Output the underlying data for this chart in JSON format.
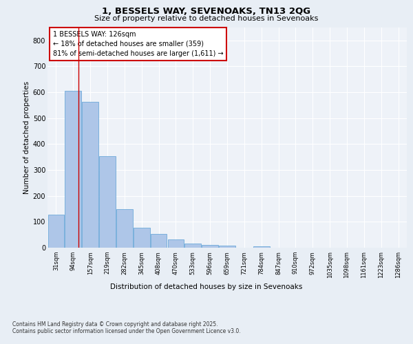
{
  "title_line1": "1, BESSELS WAY, SEVENOAKS, TN13 2QG",
  "title_line2": "Size of property relative to detached houses in Sevenoaks",
  "xlabel": "Distribution of detached houses by size in Sevenoaks",
  "ylabel": "Number of detached properties",
  "bins": [
    "31sqm",
    "94sqm",
    "157sqm",
    "219sqm",
    "282sqm",
    "345sqm",
    "408sqm",
    "470sqm",
    "533sqm",
    "596sqm",
    "659sqm",
    "721sqm",
    "784sqm",
    "847sqm",
    "910sqm",
    "972sqm",
    "1035sqm",
    "1098sqm",
    "1161sqm",
    "1223sqm",
    "1286sqm"
  ],
  "values": [
    128,
    606,
    563,
    352,
    150,
    78,
    53,
    32,
    15,
    11,
    8,
    0,
    4,
    0,
    0,
    0,
    0,
    0,
    0,
    0,
    0
  ],
  "bar_color": "#aec6e8",
  "bar_edge_color": "#5a9fd4",
  "vline_x": 1.32,
  "vline_color": "#cc0000",
  "annotation_text": "1 BESSELS WAY: 126sqm\n← 18% of detached houses are smaller (359)\n81% of semi-detached houses are larger (1,611) →",
  "annotation_box_color": "#ffffff",
  "annotation_box_edgecolor": "#cc0000",
  "bg_color": "#e8eef5",
  "plot_bg_color": "#eef2f8",
  "grid_color": "#ffffff",
  "footer_line1": "Contains HM Land Registry data © Crown copyright and database right 2025.",
  "footer_line2": "Contains public sector information licensed under the Open Government Licence v3.0.",
  "ylim": [
    0,
    850
  ],
  "yticks": [
    0,
    100,
    200,
    300,
    400,
    500,
    600,
    700,
    800
  ]
}
